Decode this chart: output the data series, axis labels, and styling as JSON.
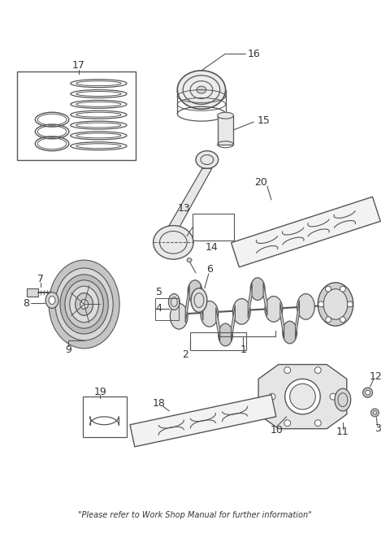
{
  "bg_color": "#ffffff",
  "line_color": "#555555",
  "text_color": "#333333",
  "footer": "\"Please refer to Work Shop Manual for further information\"",
  "figsize": [
    4.8,
    6.56
  ],
  "dpi": 100
}
